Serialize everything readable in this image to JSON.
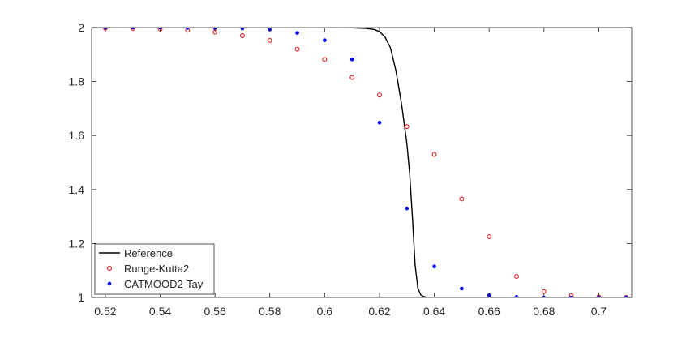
{
  "chart_data": {
    "type": "scatter",
    "title": "",
    "xlabel": "",
    "ylabel": "",
    "xlim": [
      0.515,
      0.712
    ],
    "ylim": [
      1.0,
      2.0
    ],
    "xticks": [
      0.52,
      0.54,
      0.56,
      0.58,
      0.6,
      0.62,
      0.64,
      0.66,
      0.68,
      0.7
    ],
    "xtick_labels": [
      "0.52",
      "0.54",
      "0.56",
      "0.58",
      "0.6",
      "0.62",
      "0.64",
      "0.66",
      "0.68",
      "0.7"
    ],
    "yticks": [
      1.0,
      1.2,
      1.4,
      1.6,
      1.8,
      2.0
    ],
    "ytick_labels": [
      "1",
      "1.2",
      "1.4",
      "1.6",
      "1.8",
      "2"
    ],
    "grid": false,
    "legend_position": "bottom-left",
    "series": [
      {
        "name": "Reference",
        "style": "line",
        "color": "#000000",
        "x": [
          0.515,
          0.6,
          0.61,
          0.615,
          0.618,
          0.62,
          0.622,
          0.624,
          0.626,
          0.628,
          0.63,
          0.631,
          0.632,
          0.633,
          0.634,
          0.635,
          0.636,
          0.637,
          0.64,
          0.66,
          0.68,
          0.7,
          0.712
        ],
        "y": [
          2.0,
          2.0,
          1.999,
          1.997,
          1.993,
          1.985,
          1.965,
          1.925,
          1.84,
          1.72,
          1.57,
          1.46,
          1.3,
          1.12,
          1.035,
          1.01,
          1.004,
          1.001,
          1.0,
          1.0,
          1.0,
          1.0,
          1.0
        ]
      },
      {
        "name": "Runge-Kutta2",
        "style": "open-circle",
        "color": "#e41a1c",
        "x": [
          0.52,
          0.53,
          0.54,
          0.55,
          0.56,
          0.57,
          0.58,
          0.59,
          0.6,
          0.61,
          0.62,
          0.63,
          0.64,
          0.65,
          0.66,
          0.67,
          0.68,
          0.69,
          0.7,
          0.71
        ],
        "y": [
          1.998,
          1.997,
          1.995,
          1.99,
          1.983,
          1.97,
          1.952,
          1.92,
          1.882,
          1.815,
          1.75,
          1.633,
          1.53,
          1.365,
          1.225,
          1.078,
          1.022,
          1.006,
          1.002,
          1.0
        ]
      },
      {
        "name": "CATMOOD2-Tay",
        "style": "dot",
        "color": "#0000ff",
        "x": [
          0.52,
          0.53,
          0.54,
          0.55,
          0.56,
          0.57,
          0.58,
          0.59,
          0.6,
          0.61,
          0.62,
          0.63,
          0.64,
          0.65,
          0.66,
          0.67,
          0.68,
          0.69,
          0.7,
          0.71
        ],
        "y": [
          2.0,
          2.0,
          2.0,
          1.999,
          1.998,
          1.997,
          1.993,
          1.98,
          1.953,
          1.882,
          1.648,
          1.33,
          1.115,
          1.033,
          1.008,
          1.002,
          1.0,
          1.0,
          1.0,
          1.0
        ]
      }
    ]
  }
}
